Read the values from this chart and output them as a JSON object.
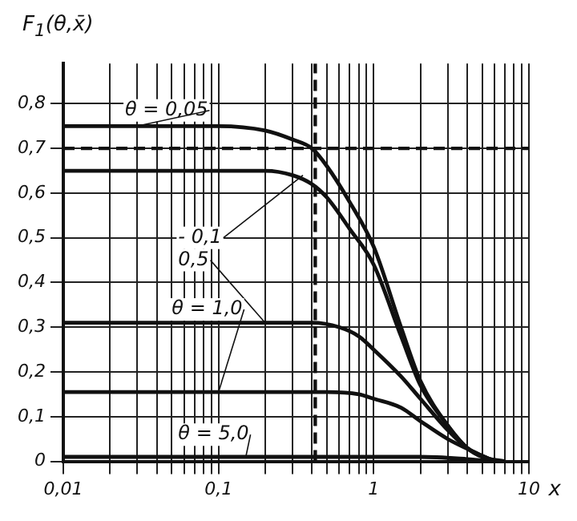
{
  "chart_data": {
    "type": "line",
    "ylabel": "F$_{1}$(θ,x̄)",
    "xlabel": "x",
    "log": "x",
    "xlim": [
      0.01,
      10
    ],
    "ylim": [
      0,
      0.89
    ],
    "xticks": [
      {
        "value": 0.01,
        "label": "0,01"
      },
      {
        "value": 0.02,
        "label": null
      },
      {
        "value": 0.03,
        "label": null
      },
      {
        "value": 0.04,
        "label": null
      },
      {
        "value": 0.05,
        "label": null
      },
      {
        "value": 0.06,
        "label": null
      },
      {
        "value": 0.07,
        "label": null
      },
      {
        "value": 0.08,
        "label": null
      },
      {
        "value": 0.09,
        "label": null
      },
      {
        "value": 0.1,
        "label": "0,1"
      },
      {
        "value": 0.2,
        "label": null
      },
      {
        "value": 0.3,
        "label": null
      },
      {
        "value": 0.4,
        "label": null
      },
      {
        "value": 0.5,
        "label": null
      },
      {
        "value": 0.6,
        "label": null
      },
      {
        "value": 0.7,
        "label": null
      },
      {
        "value": 0.8,
        "label": null
      },
      {
        "value": 0.9,
        "label": null
      },
      {
        "value": 1,
        "label": "1"
      },
      {
        "value": 2,
        "label": null
      },
      {
        "value": 3,
        "label": null
      },
      {
        "value": 4,
        "label": null
      },
      {
        "value": 5,
        "label": null
      },
      {
        "value": 6,
        "label": null
      },
      {
        "value": 7,
        "label": null
      },
      {
        "value": 8,
        "label": null
      },
      {
        "value": 9,
        "label": null
      },
      {
        "value": 10,
        "label": "10"
      }
    ],
    "yticks": [
      {
        "value": 0,
        "label": "0"
      },
      {
        "value": 0.1,
        "label": "0,1"
      },
      {
        "value": 0.2,
        "label": "0,2"
      },
      {
        "value": 0.3,
        "label": "0,3"
      },
      {
        "value": 0.4,
        "label": "0,4"
      },
      {
        "value": 0.5,
        "label": "0,5"
      },
      {
        "value": 0.6,
        "label": "0,6"
      },
      {
        "value": 0.7,
        "label": "0,7"
      },
      {
        "value": 0.8,
        "label": "0,8"
      }
    ],
    "grid": true,
    "marker": "none",
    "line_style": "solid",
    "series": [
      {
        "name": "θ = 0,05",
        "color": "#111111",
        "x": [
          0.01,
          0.1,
          0.2,
          0.3,
          0.4,
          0.5,
          0.7,
          1,
          1.5,
          2,
          3,
          4,
          5,
          7
        ],
        "values": [
          0.75,
          0.75,
          0.74,
          0.72,
          0.7,
          0.66,
          0.58,
          0.48,
          0.3,
          0.18,
          0.08,
          0.03,
          0.01,
          0
        ]
      },
      {
        "name": "- 0,1",
        "color": "#111111",
        "x": [
          0.01,
          0.2,
          0.3,
          0.4,
          0.5,
          0.7,
          1,
          1.5,
          2,
          3,
          4,
          6
        ],
        "values": [
          0.65,
          0.65,
          0.64,
          0.62,
          0.59,
          0.52,
          0.44,
          0.28,
          0.17,
          0.08,
          0.03,
          0
        ]
      },
      {
        "name": "0,5",
        "color": "#111111",
        "x": [
          0.01,
          0.4,
          0.6,
          0.8,
          1,
          1.5,
          2,
          3,
          4,
          6
        ],
        "values": [
          0.31,
          0.31,
          0.3,
          0.28,
          0.25,
          0.19,
          0.14,
          0.07,
          0.03,
          0
        ]
      },
      {
        "name": "θ = 1,0",
        "color": "#111111",
        "x": [
          0.01,
          0.5,
          0.8,
          1,
          1.5,
          2,
          3,
          4.5,
          6
        ],
        "values": [
          0.155,
          0.155,
          0.15,
          0.14,
          0.12,
          0.09,
          0.05,
          0.02,
          0
        ]
      },
      {
        "name": "θ = 5,0",
        "color": "#111111",
        "x": [
          0.01,
          2,
          4,
          6
        ],
        "values": [
          0.01,
          0.01,
          0.005,
          0
        ]
      }
    ],
    "ref_lines": [
      {
        "axis": "y",
        "value": 0.7,
        "color": "#111111",
        "line_style": "dashed"
      },
      {
        "axis": "x",
        "value": 0.42,
        "color": "#111111",
        "line_style": "dashed"
      }
    ]
  }
}
